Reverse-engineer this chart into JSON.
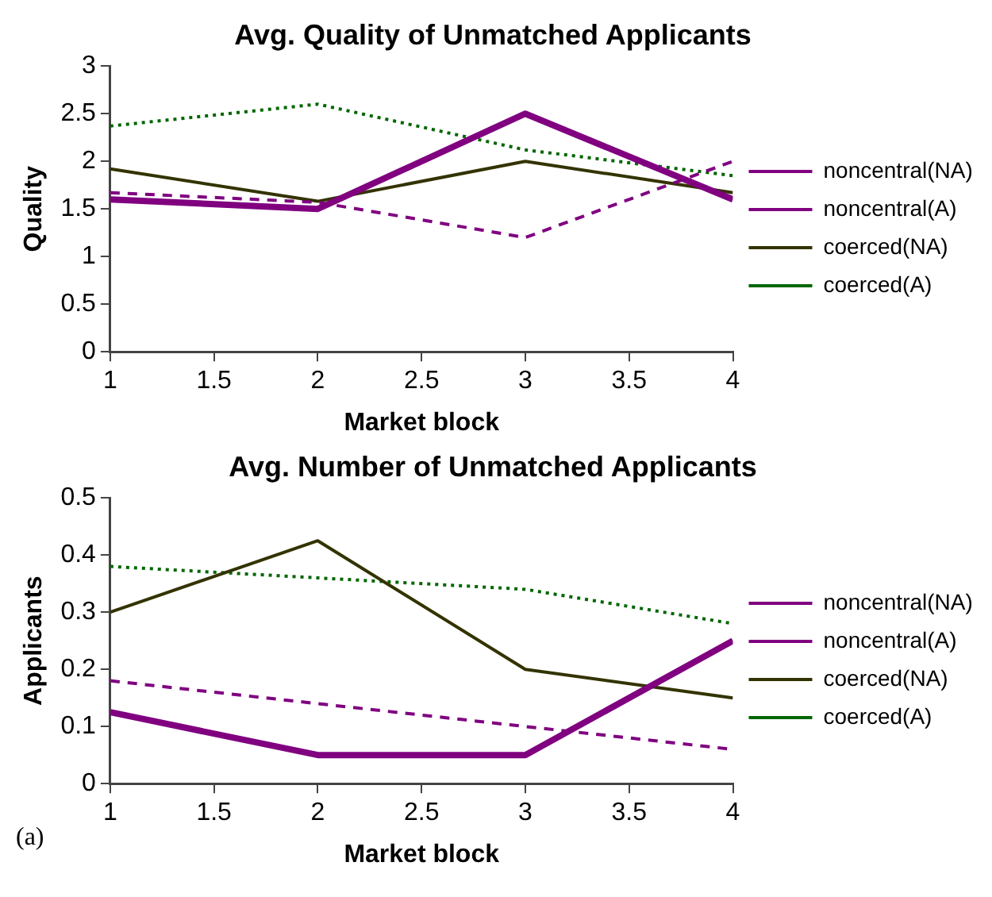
{
  "chart_data": [
    {
      "type": "line",
      "title": "Avg. Quality of Unmatched Applicants",
      "xlabel": "Market block",
      "ylabel": "Quality",
      "x": [
        1,
        2,
        3,
        4
      ],
      "xlim": [
        1,
        4
      ],
      "xticks": [
        1,
        1.5,
        2,
        2.5,
        3,
        3.5,
        4
      ],
      "ylim": [
        0,
        3
      ],
      "yticks": [
        0,
        0.5,
        1,
        1.5,
        2,
        2.5,
        3
      ],
      "grid": false,
      "legend": "right",
      "marker": "none",
      "series": [
        {
          "name": "noncentral(NA)",
          "color": "#800080",
          "line_style": "solid",
          "values": [
            1.6,
            1.5,
            2.5,
            1.6
          ]
        },
        {
          "name": "noncentral(A)",
          "color": "#800080",
          "line_style": "dashed",
          "values": [
            1.67,
            1.57,
            1.2,
            2.0
          ]
        },
        {
          "name": "coerced(NA)",
          "color": "#333300",
          "line_style": "solid",
          "values": [
            1.92,
            1.58,
            2.0,
            1.67
          ]
        },
        {
          "name": "coerced(A)",
          "color": "#006600",
          "line_style": "dotted",
          "values": [
            2.37,
            2.6,
            2.12,
            1.85
          ]
        }
      ]
    },
    {
      "type": "line",
      "title": "Avg. Number of Unmatched Applicants",
      "xlabel": "Market block",
      "ylabel": "Applicants",
      "x": [
        1,
        2,
        3,
        4
      ],
      "xlim": [
        1,
        4
      ],
      "xticks": [
        1,
        1.5,
        2,
        2.5,
        3,
        3.5,
        4
      ],
      "ylim": [
        0,
        0.5
      ],
      "yticks": [
        0,
        0.1,
        0.2,
        0.3,
        0.4,
        0.5
      ],
      "grid": false,
      "legend": "right",
      "marker": "none",
      "annotations": [
        "(a)"
      ],
      "series": [
        {
          "name": "noncentral(NA)",
          "color": "#800080",
          "line_style": "solid",
          "values": [
            0.125,
            0.05,
            0.05,
            0.25
          ]
        },
        {
          "name": "noncentral(A)",
          "color": "#800080",
          "line_style": "dashed",
          "values": [
            0.18,
            0.14,
            0.1,
            0.06
          ]
        },
        {
          "name": "coerced(NA)",
          "color": "#333300",
          "line_style": "solid",
          "values": [
            0.3,
            0.425,
            0.2,
            0.15
          ]
        },
        {
          "name": "coerced(A)",
          "color": "#006600",
          "line_style": "dotted",
          "values": [
            0.38,
            0.36,
            0.34,
            0.28
          ]
        }
      ]
    }
  ]
}
